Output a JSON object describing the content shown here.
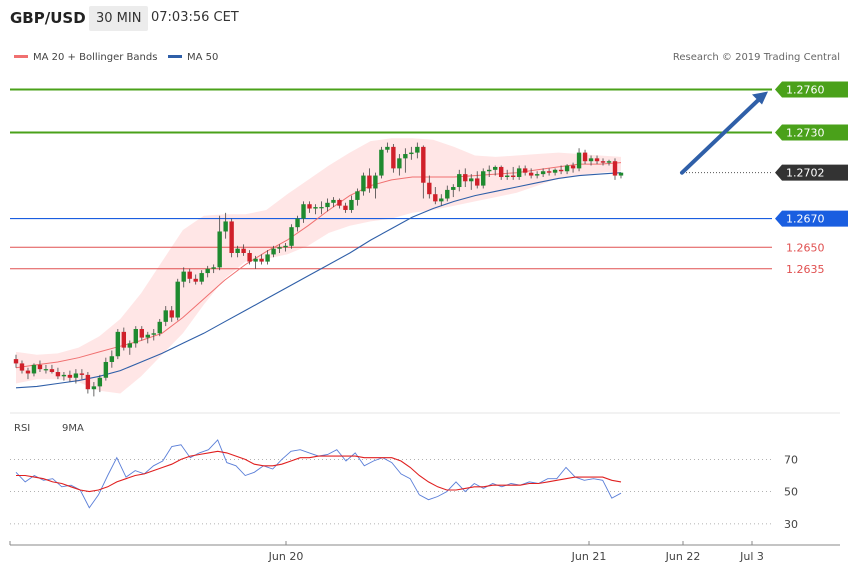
{
  "header": {
    "symbol": "GBP/USD",
    "timeframe": "30 MIN",
    "time": "07:03:56 CET"
  },
  "legend": {
    "ma20": "MA 20 + Bollinger Bands",
    "ma50": "MA 50",
    "credit": "Research © 2019 Trading Central"
  },
  "rsi_legend": {
    "rsi": "RSI",
    "ma": "9MA"
  },
  "colors": {
    "up": "#1e8a2f",
    "down": "#d0202a",
    "ma20": "#f07070",
    "ma50": "#2f5fa8",
    "band": "#ffdede",
    "target": "#4aa11a",
    "pivot": "#1a5ee0",
    "support": "#e05050",
    "arrow": "#2f5fa8",
    "rsi": "#5b7fd8",
    "rsi_ma": "#e02020"
  },
  "chart_data": [
    {
      "type": "candlestick",
      "title": "GBP/USD 30 MIN",
      "xlabel": "",
      "ylabel": "",
      "x_ticks": [
        "Jun 20",
        "Jun 21",
        "Jun 22",
        "Jul 3"
      ],
      "levels": [
        {
          "label": "1.2760",
          "value": 1.276,
          "kind": "target"
        },
        {
          "label": "1.2730",
          "value": 1.273,
          "kind": "target"
        },
        {
          "label": "1.2702",
          "value": 1.2702,
          "kind": "last"
        },
        {
          "label": "1.2670",
          "value": 1.267,
          "kind": "pivot"
        },
        {
          "label": "1.2650",
          "value": 1.265,
          "kind": "support"
        },
        {
          "label": "1.2635",
          "value": 1.2635,
          "kind": "support"
        }
      ],
      "candles": [
        [
          1.2572,
          1.2575,
          1.2566,
          1.2569
        ],
        [
          1.2569,
          1.2571,
          1.2562,
          1.2564
        ],
        [
          1.2564,
          1.2566,
          1.2558,
          1.2562
        ],
        [
          1.2562,
          1.2569,
          1.256,
          1.2568
        ],
        [
          1.2568,
          1.2571,
          1.2563,
          1.2565
        ],
        [
          1.2565,
          1.2568,
          1.2562,
          1.2565
        ],
        [
          1.2565,
          1.2568,
          1.2562,
          1.2563
        ],
        [
          1.2563,
          1.2566,
          1.2558,
          1.256
        ],
        [
          1.256,
          1.2563,
          1.2557,
          1.2561
        ],
        [
          1.2561,
          1.2564,
          1.2556,
          1.2559
        ],
        [
          1.2559,
          1.2565,
          1.2555,
          1.2562
        ],
        [
          1.2562,
          1.2565,
          1.2558,
          1.2561
        ],
        [
          1.2561,
          1.2563,
          1.2548,
          1.2551
        ],
        [
          1.2551,
          1.2556,
          1.2546,
          1.2553
        ],
        [
          1.2553,
          1.2561,
          1.2549,
          1.2559
        ],
        [
          1.2559,
          1.2573,
          1.2557,
          1.257
        ],
        [
          1.257,
          1.2578,
          1.2566,
          1.2574
        ],
        [
          1.2574,
          1.2593,
          1.2572,
          1.2591
        ],
        [
          1.2591,
          1.2594,
          1.2578,
          1.258
        ],
        [
          1.258,
          1.2585,
          1.2575,
          1.2583
        ],
        [
          1.2583,
          1.2595,
          1.258,
          1.2593
        ],
        [
          1.2593,
          1.2595,
          1.2585,
          1.2587
        ],
        [
          1.2587,
          1.2591,
          1.2583,
          1.2589
        ],
        [
          1.2589,
          1.2593,
          1.2585,
          1.259
        ],
        [
          1.259,
          1.26,
          1.2588,
          1.2598
        ],
        [
          1.2598,
          1.2609,
          1.2595,
          1.2606
        ],
        [
          1.2606,
          1.2609,
          1.2598,
          1.2601
        ],
        [
          1.2601,
          1.2628,
          1.2599,
          1.2626
        ],
        [
          1.2626,
          1.2636,
          1.2622,
          1.2633
        ],
        [
          1.2633,
          1.2635,
          1.2625,
          1.2628
        ],
        [
          1.2628,
          1.2631,
          1.2624,
          1.2626
        ],
        [
          1.2626,
          1.2634,
          1.2624,
          1.2632
        ],
        [
          1.2632,
          1.2637,
          1.2629,
          1.2635
        ],
        [
          1.2635,
          1.2638,
          1.2632,
          1.2636
        ],
        [
          1.2636,
          1.2672,
          1.2634,
          1.2661
        ],
        [
          1.2661,
          1.2674,
          1.2656,
          1.2668
        ],
        [
          1.2668,
          1.267,
          1.2643,
          1.2646
        ],
        [
          1.2646,
          1.2651,
          1.2643,
          1.2649
        ],
        [
          1.2649,
          1.2652,
          1.2644,
          1.2646
        ],
        [
          1.2646,
          1.2648,
          1.2638,
          1.264
        ],
        [
          1.264,
          1.2644,
          1.2635,
          1.2642
        ],
        [
          1.2642,
          1.2645,
          1.2638,
          1.264
        ],
        [
          1.264,
          1.2648,
          1.2638,
          1.2645
        ],
        [
          1.2645,
          1.2651,
          1.2643,
          1.2649
        ],
        [
          1.2649,
          1.2652,
          1.2646,
          1.265
        ],
        [
          1.265,
          1.2653,
          1.2647,
          1.2651
        ],
        [
          1.2651,
          1.2666,
          1.2649,
          1.2664
        ],
        [
          1.2664,
          1.2672,
          1.2661,
          1.267
        ],
        [
          1.267,
          1.2682,
          1.2667,
          1.268
        ],
        [
          1.268,
          1.2682,
          1.2674,
          1.2677
        ],
        [
          1.2677,
          1.268,
          1.2673,
          1.2678
        ],
        [
          1.2678,
          1.2682,
          1.2673,
          1.2678
        ],
        [
          1.2678,
          1.2684,
          1.2675,
          1.2681
        ],
        [
          1.2681,
          1.2685,
          1.2678,
          1.2683
        ],
        [
          1.2683,
          1.2684,
          1.2677,
          1.2679
        ],
        [
          1.2679,
          1.2681,
          1.2674,
          1.2676
        ],
        [
          1.2676,
          1.2686,
          1.2674,
          1.2683
        ],
        [
          1.2683,
          1.2691,
          1.2679,
          1.2689
        ],
        [
          1.2689,
          1.2702,
          1.2686,
          1.27
        ],
        [
          1.27,
          1.2705,
          1.2688,
          1.2691
        ],
        [
          1.2691,
          1.2702,
          1.2684,
          1.27
        ],
        [
          1.27,
          1.272,
          1.2698,
          1.2718
        ],
        [
          1.2718,
          1.2723,
          1.2716,
          1.272
        ],
        [
          1.272,
          1.2722,
          1.2702,
          1.2705
        ],
        [
          1.2705,
          1.2715,
          1.27,
          1.2712
        ],
        [
          1.2712,
          1.2719,
          1.2702,
          1.2715
        ],
        [
          1.2715,
          1.272,
          1.2711,
          1.2716
        ],
        [
          1.2716,
          1.2723,
          1.2712,
          1.272
        ],
        [
          1.272,
          1.2721,
          1.2684,
          1.2695
        ],
        [
          1.2695,
          1.27,
          1.2684,
          1.2687
        ],
        [
          1.2687,
          1.2692,
          1.268,
          1.2682
        ],
        [
          1.2682,
          1.2687,
          1.2679,
          1.2684
        ],
        [
          1.2684,
          1.2693,
          1.2682,
          1.269
        ],
        [
          1.269,
          1.2694,
          1.2685,
          1.2692
        ],
        [
          1.2692,
          1.2704,
          1.2689,
          1.2701
        ],
        [
          1.2701,
          1.2705,
          1.2692,
          1.2696
        ],
        [
          1.2696,
          1.2701,
          1.269,
          1.2698
        ],
        [
          1.2698,
          1.2703,
          1.2691,
          1.2693
        ],
        [
          1.2693,
          1.2705,
          1.2691,
          1.2703
        ],
        [
          1.2703,
          1.2707,
          1.2699,
          1.2704
        ],
        [
          1.2704,
          1.2707,
          1.27,
          1.2706
        ],
        [
          1.2706,
          1.2707,
          1.2697,
          1.2699
        ],
        [
          1.2699,
          1.2704,
          1.2697,
          1.27
        ],
        [
          1.27,
          1.2706,
          1.2697,
          1.2699
        ],
        [
          1.2699,
          1.2707,
          1.2697,
          1.2705
        ],
        [
          1.2705,
          1.2707,
          1.27,
          1.2702
        ],
        [
          1.2702,
          1.2705,
          1.2698,
          1.27
        ],
        [
          1.27,
          1.2703,
          1.2698,
          1.2701
        ],
        [
          1.2701,
          1.2705,
          1.2699,
          1.2703
        ],
        [
          1.2703,
          1.2705,
          1.27,
          1.2702
        ],
        [
          1.2702,
          1.2705,
          1.27,
          1.2704
        ],
        [
          1.2704,
          1.2707,
          1.2701,
          1.2703
        ],
        [
          1.2703,
          1.2708,
          1.2701,
          1.2707
        ],
        [
          1.2707,
          1.2709,
          1.2702,
          1.2705
        ],
        [
          1.2705,
          1.2719,
          1.2703,
          1.2716
        ],
        [
          1.2716,
          1.2718,
          1.2708,
          1.271
        ],
        [
          1.271,
          1.2714,
          1.2707,
          1.2712
        ],
        [
          1.2712,
          1.2714,
          1.2708,
          1.271
        ],
        [
          1.271,
          1.2712,
          1.2707,
          1.2709
        ],
        [
          1.2709,
          1.2711,
          1.2707,
          1.271
        ],
        [
          1.271,
          1.2712,
          1.2697,
          1.27
        ],
        [
          1.27,
          1.2702,
          1.2698,
          1.2702
        ]
      ],
      "ma20": [
        1.2566,
        1.2568,
        1.257,
        1.2573,
        1.2577,
        1.2581,
        1.2585,
        1.259,
        1.2601,
        1.2614,
        1.2627,
        1.2638,
        1.2647,
        1.2655,
        1.2665,
        1.2676,
        1.2686,
        1.2693,
        1.2697,
        1.2699,
        1.2699,
        1.2699,
        1.27,
        1.2701,
        1.2702,
        1.2704,
        1.2706,
        1.2708,
        1.2708,
        1.2709
      ],
      "bb_upper": [
        1.2577,
        1.2575,
        1.2576,
        1.258,
        1.2588,
        1.26,
        1.2618,
        1.264,
        1.2662,
        1.2672,
        1.2673,
        1.2673,
        1.2676,
        1.2687,
        1.2697,
        1.2707,
        1.2716,
        1.2724,
        1.2726,
        1.2726,
        1.2725,
        1.272,
        1.2714,
        1.2713,
        1.2714,
        1.2715,
        1.2716,
        1.2715,
        1.2714,
        1.2713
      ],
      "bb_lower": [
        1.2555,
        1.2558,
        1.2558,
        1.2556,
        1.255,
        1.2548,
        1.256,
        1.2575,
        1.259,
        1.261,
        1.2628,
        1.264,
        1.2642,
        1.2645,
        1.2651,
        1.266,
        1.2665,
        1.2668,
        1.267,
        1.2674,
        1.2676,
        1.2679,
        1.2682,
        1.2685,
        1.2688,
        1.2693,
        1.2698,
        1.27,
        1.2702,
        1.2703
      ],
      "ma50": [
        1.2552,
        1.2553,
        1.2555,
        1.2557,
        1.256,
        1.2564,
        1.257,
        1.2576,
        1.2583,
        1.259,
        1.2598,
        1.2606,
        1.2614,
        1.2622,
        1.263,
        1.2638,
        1.2646,
        1.2655,
        1.2663,
        1.2671,
        1.2677,
        1.2682,
        1.2686,
        1.2689,
        1.2692,
        1.2695,
        1.2698,
        1.27,
        1.2701,
        1.2702
      ],
      "forecast_arrow": {
        "from": 1.2702,
        "to": 1.276
      },
      "ylim": [
        1.254,
        1.2775
      ]
    },
    {
      "type": "line",
      "title": "RSI",
      "y_ticks": [
        70,
        50,
        30
      ],
      "ylim": [
        20,
        82
      ],
      "series": [
        {
          "name": "RSI",
          "values": [
            62,
            56,
            60,
            57,
            58,
            53,
            54,
            51,
            40,
            48,
            60,
            71,
            59,
            63,
            61,
            66,
            69,
            78,
            79,
            71,
            74,
            76,
            82,
            68,
            66,
            60,
            62,
            66,
            64,
            70,
            75,
            76,
            74,
            72,
            73,
            76,
            69,
            74,
            66,
            69,
            71,
            68,
            61,
            58,
            48,
            45,
            47,
            50,
            56,
            50,
            55,
            52,
            55,
            53,
            55,
            54,
            56,
            55,
            58,
            58,
            65,
            59,
            57,
            58,
            57,
            46,
            49
          ]
        },
        {
          "name": "9MA",
          "values": [
            60,
            60,
            59,
            58,
            56,
            55,
            53,
            51,
            50,
            51,
            53,
            56,
            58,
            60,
            61,
            63,
            65,
            67,
            70,
            72,
            73,
            74,
            75,
            74,
            72,
            70,
            67,
            66,
            66,
            67,
            69,
            71,
            71,
            72,
            72,
            72,
            72,
            72,
            71,
            71,
            71,
            71,
            69,
            65,
            60,
            56,
            53,
            51,
            51,
            52,
            53,
            53,
            54,
            54,
            54,
            54,
            55,
            55,
            56,
            57,
            58,
            59,
            59,
            59,
            59,
            57,
            56
          ]
        }
      ]
    }
  ]
}
